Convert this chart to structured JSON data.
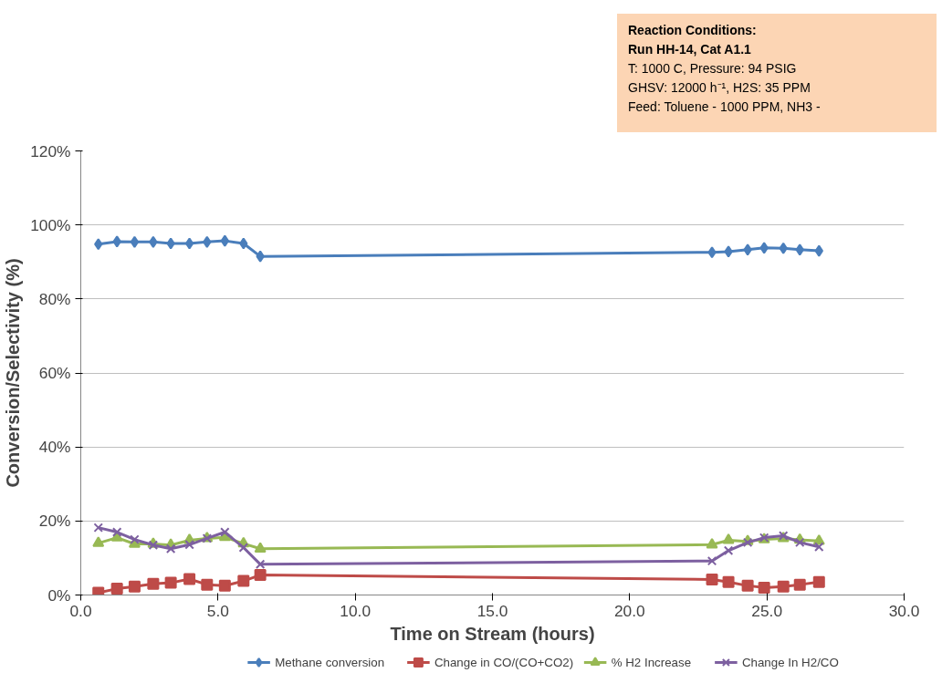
{
  "chart_data": {
    "type": "line",
    "xlabel": "Time on Stream (hours)",
    "ylabel": "Conversion/Selectivity (%)",
    "annotations": [
      "Reaction Conditions:",
      "Run HH-14, Cat A1.1",
      "T: 1000 C, Pressure: 94 PSIG",
      "GHSV: 12000 h⁻¹, H2S: 35 PPM",
      "Feed: Toluene - 1000 PPM, NH3 -"
    ],
    "x": [
      0.64,
      1.32,
      1.96,
      2.64,
      3.28,
      3.96,
      4.6,
      5.25,
      5.93,
      6.54,
      23.0,
      23.6,
      24.3,
      24.9,
      25.6,
      26.2,
      26.9
    ],
    "series": [
      {
        "name": "Methane conversion",
        "color": "#4a7ebb",
        "marker": "diamond",
        "values": [
          94.8,
          95.5,
          95.4,
          95.4,
          95.0,
          95.0,
          95.4,
          95.7,
          95.0,
          91.5,
          92.6,
          92.8,
          93.3,
          93.8,
          93.7,
          93.3,
          93.0
        ]
      },
      {
        "name": "Change in CO/(CO+CO2)",
        "color": "#be4b48",
        "marker": "square",
        "values": [
          0.6,
          1.7,
          2.3,
          3.0,
          3.3,
          4.3,
          2.8,
          2.5,
          3.8,
          5.4,
          4.2,
          3.5,
          2.5,
          2.0,
          2.3,
          2.8,
          3.5
        ]
      },
      {
        "name": "% H2 Increase",
        "color": "#98b954",
        "marker": "triangle",
        "values": [
          14.0,
          15.5,
          13.8,
          13.8,
          13.5,
          14.8,
          15.3,
          15.6,
          13.9,
          12.5,
          13.6,
          14.8,
          14.5,
          15.0,
          15.3,
          14.9,
          14.6
        ]
      },
      {
        "name": "Change In H2/CO",
        "color": "#7d60a0",
        "marker": "cross",
        "values": [
          18.2,
          17.0,
          15.0,
          13.5,
          12.5,
          13.6,
          15.3,
          17.0,
          12.8,
          8.3,
          9.2,
          12.0,
          14.2,
          15.5,
          16.0,
          14.2,
          13.0
        ]
      }
    ],
    "xlim": [
      0,
      30
    ],
    "ylim": [
      0,
      120
    ],
    "xticks": [
      {
        "value": 0,
        "label": "0.0"
      },
      {
        "value": 5,
        "label": "5.0"
      },
      {
        "value": 10,
        "label": "10.0"
      },
      {
        "value": 15,
        "label": "15.0"
      },
      {
        "value": 20,
        "label": "20.0"
      },
      {
        "value": 25,
        "label": "25.0"
      },
      {
        "value": 30,
        "label": "30.0"
      }
    ],
    "yticks": [
      {
        "value": 0,
        "label": "0%"
      },
      {
        "value": 20,
        "label": "20%"
      },
      {
        "value": 40,
        "label": "40%"
      },
      {
        "value": 60,
        "label": "60%"
      },
      {
        "value": 80,
        "label": "80%"
      },
      {
        "value": 100,
        "label": "100%"
      },
      {
        "value": 120,
        "label": "120%"
      }
    ],
    "grid": "y",
    "legend": "bottom",
    "line_style": "solid"
  }
}
